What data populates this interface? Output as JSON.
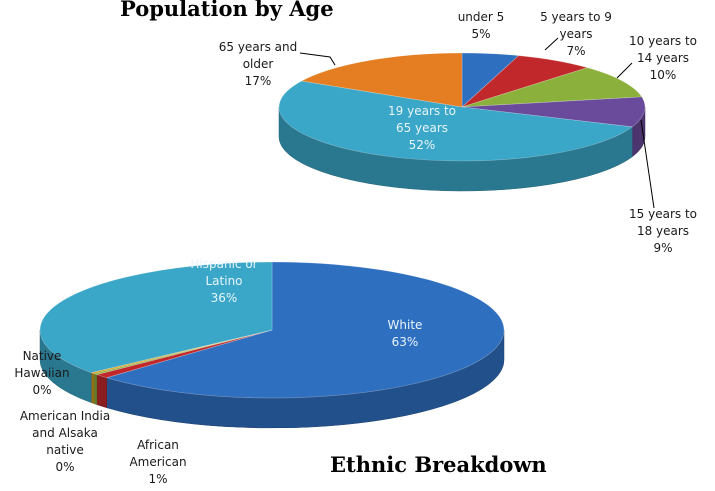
{
  "chart_data": [
    {
      "type": "pie",
      "title": "Population by Age",
      "slices": [
        {
          "label": [
            "under 5",
            "5%"
          ],
          "value": 5,
          "color": "#2f6fc0"
        },
        {
          "label": [
            "5 years to 9",
            "years",
            "7%"
          ],
          "value": 7,
          "color": "#c0282b"
        },
        {
          "label": [
            "10 years to",
            "14 years",
            "10%"
          ],
          "value": 10,
          "color": "#8cb03c"
        },
        {
          "label": [
            "15 years to",
            "18 years",
            "9%"
          ],
          "value": 9,
          "color": "#6a4a9a"
        },
        {
          "label": [
            "19 years to",
            "65 years",
            "52%"
          ],
          "value": 52,
          "color": "#3aa7c8"
        },
        {
          "label": [
            "65 years and",
            "older",
            "17%"
          ],
          "value": 17,
          "color": "#e57e22"
        }
      ]
    },
    {
      "type": "pie",
      "title": "Ethnic Breakdown",
      "slices": [
        {
          "label": [
            "White",
            "63%"
          ],
          "value": 63,
          "color": "#2f6fc0"
        },
        {
          "label": [
            "African",
            "American",
            "1%"
          ],
          "value": 1,
          "color": "#c0282b"
        },
        {
          "label": [
            "American India",
            "and Alsaka",
            "native",
            "0%"
          ],
          "value": 0.3,
          "color": "#8cb03c"
        },
        {
          "label": [
            "Native",
            "Hawaiian",
            "0%"
          ],
          "value": 0.3,
          "color": "#d6a020"
        },
        {
          "label": [
            "Hispanic or",
            "Latino",
            "36%"
          ],
          "value": 36,
          "color": "#3aa7c8"
        }
      ]
    }
  ]
}
